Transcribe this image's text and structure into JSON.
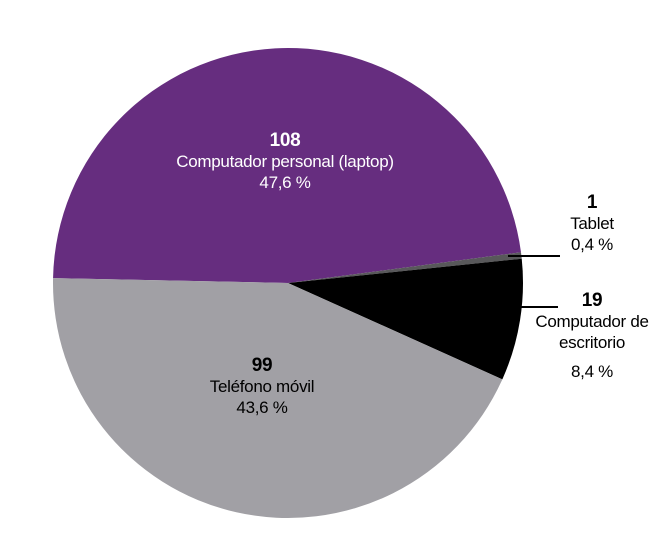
{
  "chart_data": {
    "type": "pie",
    "categories": [
      "Computador personal (laptop)",
      "Tablet",
      "Computador de escritorio",
      "Teléfono móvil"
    ],
    "values": [
      108,
      1,
      19,
      99
    ],
    "percent_labels": [
      "47,6 %",
      "0,4 %",
      "8,4 %",
      "43,6 %"
    ],
    "colors": [
      "#662d7f",
      "#58585a",
      "#000000",
      "#a1a0a5"
    ]
  }
}
